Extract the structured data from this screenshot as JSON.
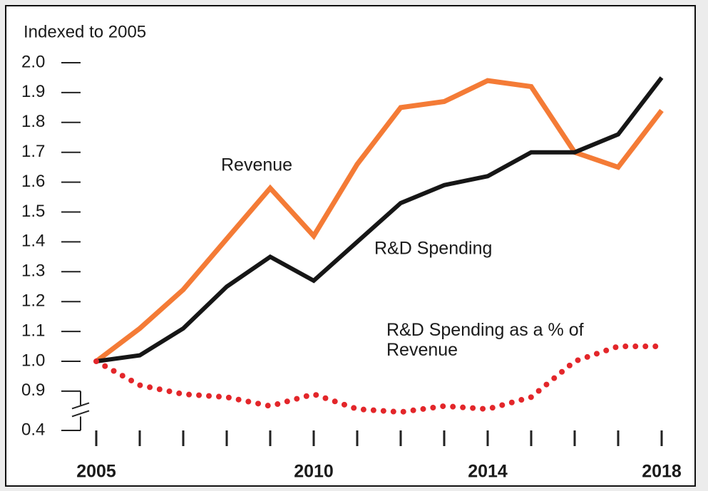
{
  "chart_data": {
    "type": "line",
    "title": "Indexed to 2005",
    "categories": [
      "2005",
      null,
      null,
      null,
      null,
      "2010",
      null,
      null,
      null,
      "2014",
      null,
      null,
      null,
      "2018"
    ],
    "series": [
      {
        "name": "Revenue",
        "color": "#f47b36",
        "style": "solid",
        "values": [
          1.0,
          1.11,
          1.24,
          1.41,
          1.58,
          1.42,
          1.66,
          1.85,
          1.87,
          1.94,
          1.92,
          1.7,
          1.65,
          1.84
        ]
      },
      {
        "name": "R&D Spending",
        "color": "#161616",
        "style": "solid",
        "values": [
          1.0,
          1.02,
          1.11,
          1.25,
          1.35,
          1.27,
          1.4,
          1.53,
          1.59,
          1.62,
          1.7,
          1.7,
          1.76,
          1.95
        ]
      },
      {
        "name": "R&D Spending as a % of Revenue",
        "color": "#e3262a",
        "style": "dotted",
        "values": [
          1.0,
          0.92,
          0.89,
          0.88,
          0.85,
          0.89,
          0.84,
          0.83,
          0.85,
          0.84,
          0.88,
          1.0,
          1.05,
          1.05
        ]
      }
    ],
    "ylim": [
      0.4,
      2.0
    ],
    "axis_break": [
      0.4,
      0.8
    ],
    "yticks": [
      {
        "value": 0.4,
        "label": "0.4"
      },
      {
        "value": 0.9,
        "label": "0.9"
      },
      {
        "value": 1.0,
        "label": "1.0"
      },
      1.1,
      1.2,
      1.3,
      1.4,
      1.5,
      1.6,
      1.7,
      1.8,
      1.9,
      {
        "value": 2.0,
        "label": "2.0"
      }
    ]
  }
}
